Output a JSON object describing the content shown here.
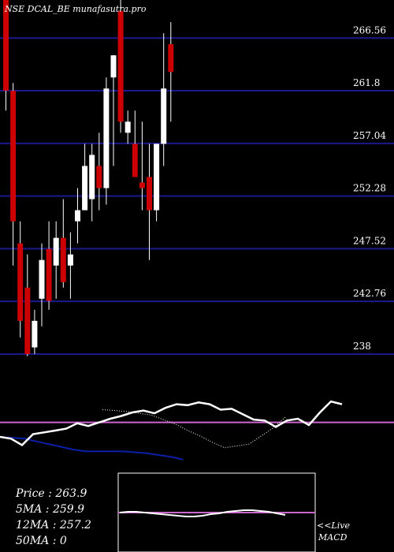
{
  "header": {
    "title": "NSE DCAL_BE munafasutra.pro"
  },
  "colors": {
    "background": "#000000",
    "grid": "#1a1a8c",
    "up": "#ffffff",
    "down": "#cc0000",
    "price_line": "#ffffff",
    "ma_dotted": "#ffffff",
    "ma_blue": "#0b1fa8",
    "ref_line": "#cc66cc",
    "macd_border": "#ffffff"
  },
  "stats": {
    "price": "Price   : 263.9",
    "ma5": "5MA : 259.9",
    "ma12": "12MA : 257.2",
    "ma50": "50MA : 0"
  },
  "macd": {
    "live_label": "<<Live",
    "name": "MACD"
  },
  "chart_data": {
    "type": "candlestick",
    "title": "NSE DCAL_BE munafasutra.pro",
    "y_ticks": [
      "266.56",
      "261.8",
      "257.04",
      "252.28",
      "247.52",
      "242.76",
      "238"
    ],
    "ylim": [
      236.5,
      270.0
    ],
    "grid": true,
    "candles": [
      {
        "o": 275.0,
        "h": 276.0,
        "l": 260.0,
        "c": 261.8
      },
      {
        "o": 261.8,
        "h": 262.5,
        "l": 246.0,
        "c": 250.0
      },
      {
        "o": 248.0,
        "h": 250.0,
        "l": 239.5,
        "c": 241.0
      },
      {
        "o": 244.0,
        "h": 247.0,
        "l": 237.8,
        "c": 238.0
      },
      {
        "o": 238.6,
        "h": 242.0,
        "l": 238.0,
        "c": 241.0
      },
      {
        "o": 243.0,
        "h": 248.0,
        "l": 240.5,
        "c": 246.5
      },
      {
        "o": 247.5,
        "h": 250.0,
        "l": 242.0,
        "c": 242.8
      },
      {
        "o": 246.0,
        "h": 250.0,
        "l": 243.0,
        "c": 248.5
      },
      {
        "o": 248.5,
        "h": 252.0,
        "l": 244.0,
        "c": 244.5
      },
      {
        "o": 246.0,
        "h": 249.0,
        "l": 243.0,
        "c": 247.0
      },
      {
        "o": 250.0,
        "h": 253.0,
        "l": 248.0,
        "c": 251.0
      },
      {
        "o": 251.0,
        "h": 257.0,
        "l": 251.0,
        "c": 255.0
      },
      {
        "o": 252.0,
        "h": 257.0,
        "l": 250.0,
        "c": 256.0
      },
      {
        "o": 255.0,
        "h": 258.0,
        "l": 251.0,
        "c": 253.0
      },
      {
        "o": 253.0,
        "h": 263.0,
        "l": 251.5,
        "c": 262.0
      },
      {
        "o": 263.0,
        "h": 265.0,
        "l": 255.0,
        "c": 265.0
      },
      {
        "o": 269.0,
        "h": 270.0,
        "l": 258.0,
        "c": 259.0
      },
      {
        "o": 258.0,
        "h": 260.0,
        "l": 257.0,
        "c": 259.0
      },
      {
        "o": 257.0,
        "h": 260.0,
        "l": 254.0,
        "c": 254.0
      },
      {
        "o": 253.5,
        "h": 259.0,
        "l": 251.0,
        "c": 253.0
      },
      {
        "o": 254.0,
        "h": 257.0,
        "l": 246.5,
        "c": 251.0
      },
      {
        "o": 251.0,
        "h": 257.0,
        "l": 250.0,
        "c": 257.0
      },
      {
        "o": 257.0,
        "h": 267.0,
        "l": 255.0,
        "c": 262.0
      },
      {
        "o": 266.0,
        "h": 268.0,
        "l": 259.0,
        "c": 263.5
      }
    ],
    "indicator": {
      "price_line": [
        60,
        62,
        69,
        57,
        55,
        53,
        51,
        45,
        48,
        44,
        40,
        37,
        33,
        31,
        34,
        28,
        24,
        25,
        22,
        24,
        30,
        29,
        35,
        41,
        42,
        49,
        42,
        40,
        47,
        33,
        21,
        24
      ],
      "ma_dotted": [
        30,
        31,
        32,
        34,
        36,
        41,
        46,
        53,
        59,
        66,
        72,
        70,
        68,
        59,
        50,
        38
      ],
      "ma_blue": [
        60,
        61,
        62,
        65,
        68,
        71,
        74,
        76,
        76,
        76,
        76,
        77,
        78,
        80,
        82,
        85
      ],
      "ref_level": 44
    },
    "macd_series": [
      50,
      49,
      49,
      50,
      51,
      52,
      53,
      54,
      55,
      55,
      54,
      52,
      51,
      49,
      48,
      47,
      47,
      48,
      49,
      51,
      53
    ]
  }
}
